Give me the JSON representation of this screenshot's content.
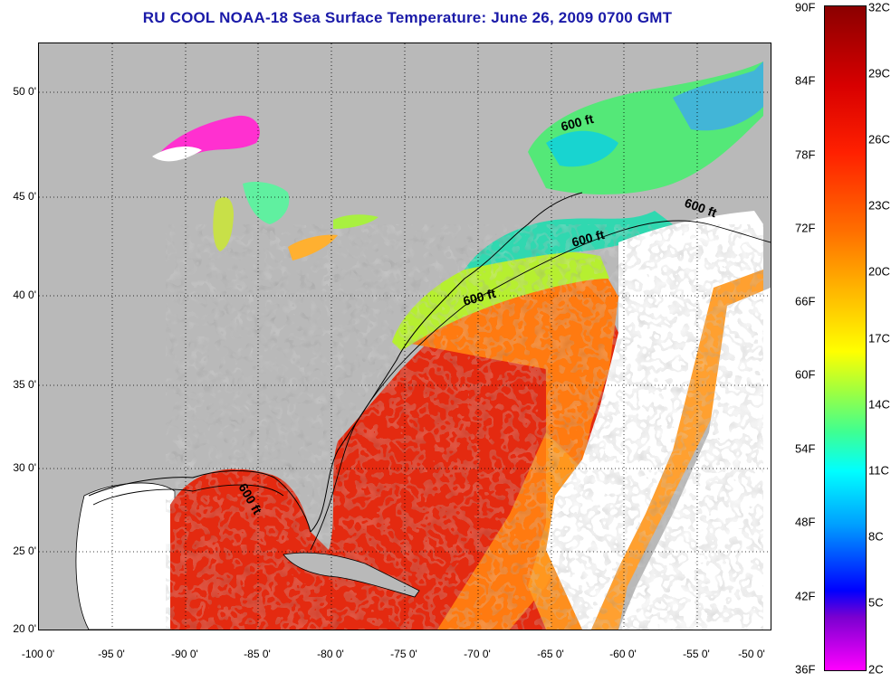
{
  "title": "RU COOL  NOAA-18  Sea Surface Temperature:  June 26, 2009 0700 GMT",
  "x_ticks": [
    "-100 0'",
    "-95 0'",
    "-90 0'",
    "-85 0'",
    "-80 0'",
    "-75 0'",
    "-70 0'",
    "-65 0'",
    "-60 0'",
    "-55 0'",
    "-50 0'"
  ],
  "y_ticks": [
    "50 0'",
    "45 0'",
    "40 0'",
    "35 0'",
    "30 0'",
    "25 0'",
    "20 0'"
  ],
  "colorbar": {
    "fahrenheit": [
      "90F",
      "84F",
      "78F",
      "72F",
      "66F",
      "60F",
      "54F",
      "48F",
      "42F",
      "36F"
    ],
    "celsius": [
      "32C",
      "29C",
      "26C",
      "23C",
      "20C",
      "17C",
      "14C",
      "11C",
      "8C",
      "5C",
      "2C"
    ]
  },
  "contour_labels": [
    "600 ft",
    "600 ft",
    "600 ft",
    "600 ft",
    "600 ft"
  ],
  "colors": {
    "title": "#1a1aa8",
    "land": "#b9b9b9",
    "cloud": "#ffffff"
  }
}
